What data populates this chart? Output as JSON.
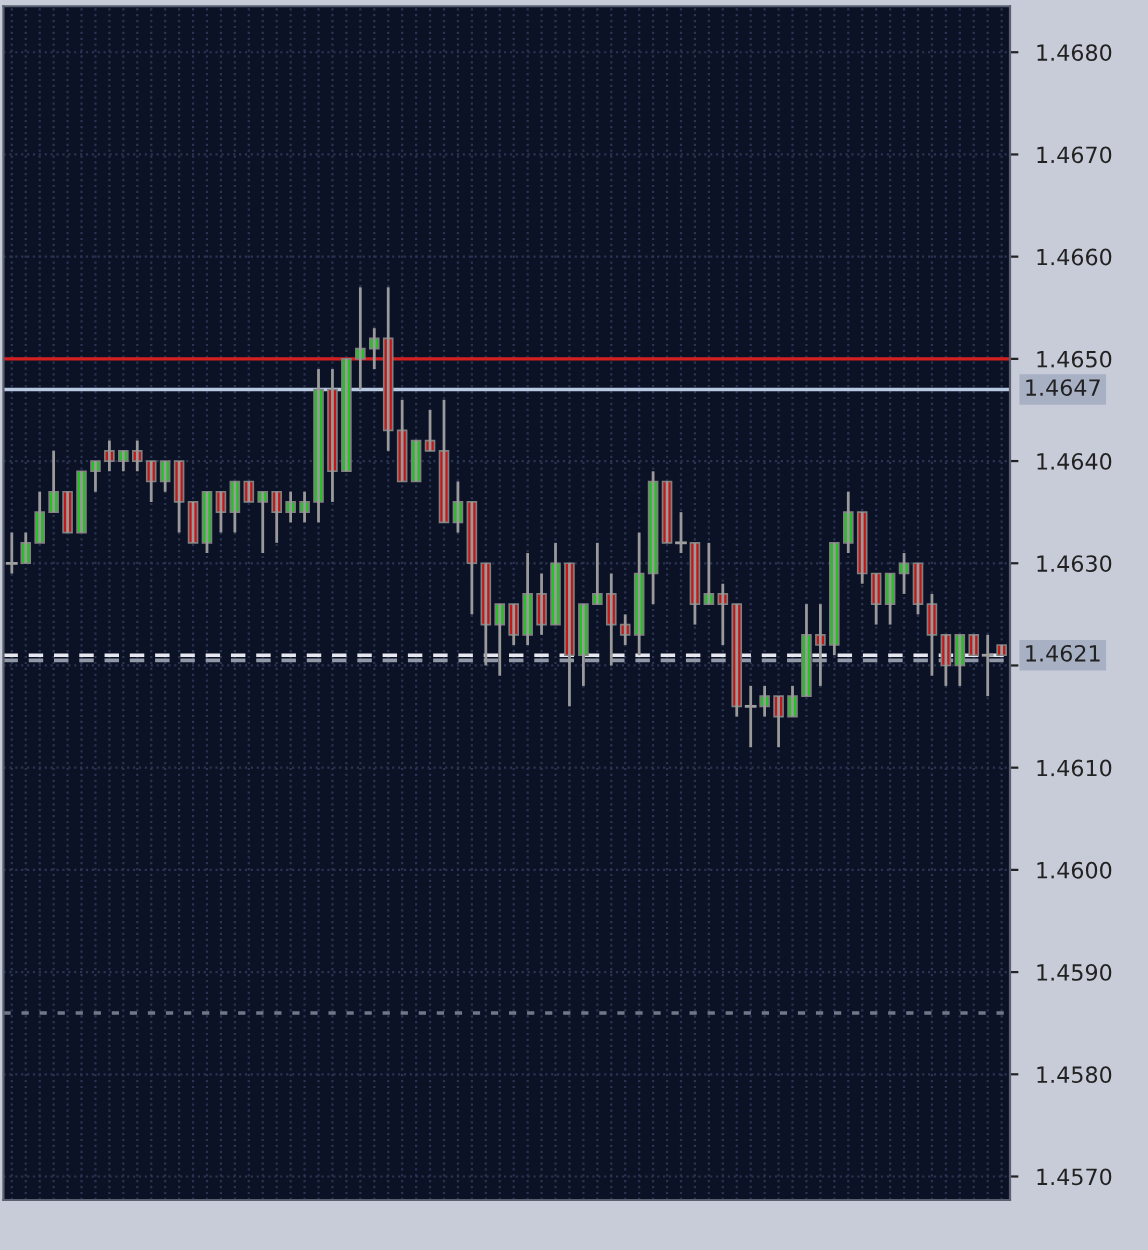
{
  "chart_data": {
    "type": "candlestick",
    "categories": [
      null,
      null,
      null,
      null,
      null,
      null,
      null,
      null,
      null,
      null,
      null,
      null,
      null,
      null,
      null,
      null,
      null,
      null,
      null,
      null,
      null,
      null,
      null,
      null,
      null,
      null,
      null,
      null,
      null,
      null,
      null,
      null,
      null,
      null,
      null,
      null,
      null,
      null,
      null,
      null,
      null,
      null,
      null,
      null,
      null,
      null,
      null,
      null,
      null,
      null,
      null,
      null,
      null,
      null,
      null,
      null,
      null,
      null,
      null,
      null,
      null,
      null,
      null,
      null,
      null,
      null,
      null,
      null,
      null,
      null,
      null,
      null
    ],
    "ohlc": [
      [
        1.463,
        1.4633,
        1.4629,
        1.463
      ],
      [
        1.463,
        1.4633,
        1.463,
        1.4632
      ],
      [
        1.4632,
        1.4637,
        1.4632,
        1.4635
      ],
      [
        1.4635,
        1.4641,
        1.4635,
        1.4637
      ],
      [
        1.4637,
        1.4637,
        1.4633,
        1.4633
      ],
      [
        1.4633,
        1.4639,
        1.4633,
        1.4639
      ],
      [
        1.4639,
        1.464,
        1.4637,
        1.464
      ],
      [
        1.4641,
        1.4642,
        1.4639,
        1.464
      ],
      [
        1.464,
        1.4641,
        1.4639,
        1.4641
      ],
      [
        1.4641,
        1.4642,
        1.4639,
        1.464
      ],
      [
        1.464,
        1.464,
        1.4636,
        1.4638
      ],
      [
        1.4638,
        1.464,
        1.4637,
        1.464
      ],
      [
        1.464,
        1.464,
        1.4633,
        1.4636
      ],
      [
        1.4636,
        1.4636,
        1.4632,
        1.4632
      ],
      [
        1.4632,
        1.4637,
        1.4631,
        1.4637
      ],
      [
        1.4637,
        1.4637,
        1.4633,
        1.4635
      ],
      [
        1.4635,
        1.4638,
        1.4633,
        1.4638
      ],
      [
        1.4638,
        1.4638,
        1.4636,
        1.4636
      ],
      [
        1.4636,
        1.4637,
        1.4631,
        1.4637
      ],
      [
        1.4637,
        1.4637,
        1.4632,
        1.4635
      ],
      [
        1.4635,
        1.4637,
        1.4634,
        1.4636
      ],
      [
        1.4635,
        1.4637,
        1.4634,
        1.4636
      ],
      [
        1.4636,
        1.4649,
        1.4634,
        1.4647
      ],
      [
        1.4647,
        1.4649,
        1.4636,
        1.4639
      ],
      [
        1.4639,
        1.465,
        1.4639,
        1.465
      ],
      [
        1.465,
        1.4657,
        1.4647,
        1.4651
      ],
      [
        1.4651,
        1.4653,
        1.4649,
        1.4652
      ],
      [
        1.4652,
        1.4657,
        1.4641,
        1.4643
      ],
      [
        1.4643,
        1.4646,
        1.4638,
        1.4638
      ],
      [
        1.4638,
        1.4642,
        1.4638,
        1.4642
      ],
      [
        1.4642,
        1.4645,
        1.4641,
        1.4641
      ],
      [
        1.4641,
        1.4646,
        1.4634,
        1.4634
      ],
      [
        1.4634,
        1.4638,
        1.4633,
        1.4636
      ],
      [
        1.4636,
        1.4636,
        1.4625,
        1.463
      ],
      [
        1.463,
        1.463,
        1.462,
        1.4624
      ],
      [
        1.4624,
        1.4626,
        1.4619,
        1.4626
      ],
      [
        1.4626,
        1.4626,
        1.4622,
        1.4623
      ],
      [
        1.4623,
        1.4631,
        1.4622,
        1.4627
      ],
      [
        1.4627,
        1.4629,
        1.4623,
        1.4624
      ],
      [
        1.4624,
        1.4632,
        1.4624,
        1.463
      ],
      [
        1.463,
        1.463,
        1.4616,
        1.4621
      ],
      [
        1.4621,
        1.4626,
        1.4618,
        1.4626
      ],
      [
        1.4626,
        1.4632,
        1.4626,
        1.4627
      ],
      [
        1.4627,
        1.4629,
        1.462,
        1.4624
      ],
      [
        1.4624,
        1.4625,
        1.4622,
        1.4623
      ],
      [
        1.4623,
        1.4633,
        1.4621,
        1.4629
      ],
      [
        1.4629,
        1.4639,
        1.4626,
        1.4638
      ],
      [
        1.4638,
        1.4638,
        1.4632,
        1.4632
      ],
      [
        1.4632,
        1.4635,
        1.4631,
        1.4632
      ],
      [
        1.4632,
        1.4632,
        1.4624,
        1.4626
      ],
      [
        1.4626,
        1.4632,
        1.4626,
        1.4627
      ],
      [
        1.4627,
        1.4628,
        1.4622,
        1.4626
      ],
      [
        1.4626,
        1.4626,
        1.4615,
        1.4616
      ],
      [
        1.4616,
        1.4618,
        1.4612,
        1.4616
      ],
      [
        1.4616,
        1.4618,
        1.4615,
        1.4617
      ],
      [
        1.4617,
        1.4617,
        1.4612,
        1.4615
      ],
      [
        1.4615,
        1.4618,
        1.4615,
        1.4617
      ],
      [
        1.4617,
        1.4626,
        1.4617,
        1.4623
      ],
      [
        1.4623,
        1.4626,
        1.4618,
        1.4622
      ],
      [
        1.4622,
        1.4632,
        1.4621,
        1.4632
      ],
      [
        1.4632,
        1.4637,
        1.4631,
        1.4635
      ],
      [
        1.4635,
        1.4635,
        1.4628,
        1.4629
      ],
      [
        1.4629,
        1.4629,
        1.4624,
        1.4626
      ],
      [
        1.4626,
        1.4629,
        1.4624,
        1.4629
      ],
      [
        1.4629,
        1.4631,
        1.4627,
        1.463
      ],
      [
        1.463,
        1.463,
        1.4625,
        1.4626
      ],
      [
        1.4626,
        1.4627,
        1.4619,
        1.4623
      ],
      [
        1.4623,
        1.4623,
        1.4618,
        1.462
      ],
      [
        1.462,
        1.4623,
        1.4618,
        1.4623
      ],
      [
        1.4623,
        1.4623,
        1.4621,
        1.4621
      ],
      [
        1.4621,
        1.4623,
        1.4617,
        1.4621
      ],
      [
        1.4622,
        1.4622,
        1.4621,
        1.4621
      ]
    ],
    "ylim": [
      1.45677,
      1.46845
    ],
    "yticks": [
      {
        "value": 1.468,
        "label": "1.4680"
      },
      {
        "value": 1.467,
        "label": "1.4670"
      },
      {
        "value": 1.466,
        "label": "1.4660"
      },
      {
        "value": 1.465,
        "label": "1.4650"
      },
      {
        "value": 1.464,
        "label": "1.4640"
      },
      {
        "value": 1.463,
        "label": "1.4630"
      },
      {
        "value": 1.462,
        "label": null
      },
      {
        "value": 1.461,
        "label": "1.4610"
      },
      {
        "value": 1.46,
        "label": "1.4600"
      },
      {
        "value": 1.459,
        "label": "1.4590"
      },
      {
        "value": 1.458,
        "label": "1.4580"
      },
      {
        "value": 1.457,
        "label": "1.4570"
      }
    ],
    "ref_lines": [
      {
        "axis": "y",
        "value": 1.465,
        "label": null,
        "color": "#d42020",
        "line_style": "solid"
      },
      {
        "axis": "y",
        "value": 1.4647,
        "label": "1.4647",
        "color": "#b8c8e0",
        "line_style": "solid"
      },
      {
        "axis": "y",
        "value": 1.4621,
        "label": "1.4621",
        "color": "#e8e8f0",
        "line_style": "dashed"
      },
      {
        "axis": "y",
        "value": 1.46205,
        "label": null,
        "color": "#9098a8",
        "line_style": "dashed"
      },
      {
        "axis": "y",
        "value": 1.4586,
        "label": null,
        "color": "#707888",
        "line_style": "dotted"
      }
    ],
    "grid": true
  }
}
